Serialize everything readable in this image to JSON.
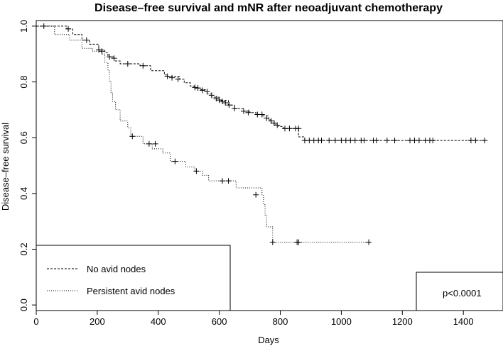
{
  "chart_data": {
    "type": "line",
    "subtype": "kaplan-meier",
    "title": "Disease–free survival and mNR after neoadjuvant chemotherapy",
    "xlabel": "Days",
    "ylabel": "Disease–free survival",
    "xlim": [
      0,
      1530
    ],
    "ylim": [
      -0.02,
      1.02
    ],
    "xticks": [
      0,
      200,
      400,
      600,
      800,
      1000,
      1200,
      1400
    ],
    "yticks": [
      0.0,
      0.2,
      0.4,
      0.6,
      0.8,
      1.0
    ],
    "xtick_labels": [
      "0",
      "200",
      "400",
      "600",
      "800",
      "1000",
      "1200",
      "1400"
    ],
    "ytick_labels": [
      "0.0",
      "0.2",
      "0.4",
      "0.6",
      "0.8",
      "1.0"
    ],
    "series": [
      {
        "name": "No avid nodes",
        "style": "dashed",
        "steps": [
          [
            0,
            1.0
          ],
          [
            100,
            0.99
          ],
          [
            120,
            0.97
          ],
          [
            150,
            0.95
          ],
          [
            175,
            0.935
          ],
          [
            205,
            0.915
          ],
          [
            225,
            0.905
          ],
          [
            235,
            0.89
          ],
          [
            255,
            0.875
          ],
          [
            275,
            0.865
          ],
          [
            340,
            0.858
          ],
          [
            375,
            0.84
          ],
          [
            420,
            0.825
          ],
          [
            430,
            0.82
          ],
          [
            470,
            0.81
          ],
          [
            485,
            0.797
          ],
          [
            505,
            0.785
          ],
          [
            518,
            0.778
          ],
          [
            540,
            0.772
          ],
          [
            560,
            0.757
          ],
          [
            575,
            0.745
          ],
          [
            600,
            0.733
          ],
          [
            630,
            0.717
          ],
          [
            650,
            0.704
          ],
          [
            680,
            0.695
          ],
          [
            700,
            0.69
          ],
          [
            720,
            0.683
          ],
          [
            742,
            0.678
          ],
          [
            760,
            0.664
          ],
          [
            770,
            0.652
          ],
          [
            785,
            0.645
          ],
          [
            795,
            0.64
          ],
          [
            810,
            0.633
          ],
          [
            860,
            0.603
          ],
          [
            880,
            0.59
          ],
          [
            1470,
            0.59
          ]
        ],
        "censor": [
          [
            25,
            1.0
          ],
          [
            105,
            0.99
          ],
          [
            165,
            0.95
          ],
          [
            205,
            0.915
          ],
          [
            215,
            0.91
          ],
          [
            240,
            0.89
          ],
          [
            255,
            0.885
          ],
          [
            300,
            0.865
          ],
          [
            350,
            0.858
          ],
          [
            430,
            0.82
          ],
          [
            445,
            0.815
          ],
          [
            465,
            0.81
          ],
          [
            520,
            0.78
          ],
          [
            530,
            0.778
          ],
          [
            545,
            0.77
          ],
          [
            560,
            0.765
          ],
          [
            575,
            0.752
          ],
          [
            590,
            0.74
          ],
          [
            600,
            0.735
          ],
          [
            610,
            0.73
          ],
          [
            620,
            0.725
          ],
          [
            632,
            0.717
          ],
          [
            650,
            0.705
          ],
          [
            680,
            0.695
          ],
          [
            695,
            0.69
          ],
          [
            725,
            0.683
          ],
          [
            740,
            0.683
          ],
          [
            755,
            0.67
          ],
          [
            770,
            0.66
          ],
          [
            780,
            0.652
          ],
          [
            790,
            0.645
          ],
          [
            815,
            0.633
          ],
          [
            830,
            0.633
          ],
          [
            850,
            0.633
          ],
          [
            860,
            0.633
          ],
          [
            880,
            0.59
          ],
          [
            895,
            0.59
          ],
          [
            910,
            0.59
          ],
          [
            925,
            0.59
          ],
          [
            935,
            0.59
          ],
          [
            960,
            0.59
          ],
          [
            980,
            0.59
          ],
          [
            1000,
            0.59
          ],
          [
            1015,
            0.59
          ],
          [
            1030,
            0.59
          ],
          [
            1045,
            0.59
          ],
          [
            1065,
            0.59
          ],
          [
            1075,
            0.59
          ],
          [
            1105,
            0.59
          ],
          [
            1115,
            0.59
          ],
          [
            1150,
            0.59
          ],
          [
            1175,
            0.59
          ],
          [
            1225,
            0.59
          ],
          [
            1240,
            0.59
          ],
          [
            1255,
            0.59
          ],
          [
            1275,
            0.59
          ],
          [
            1290,
            0.59
          ],
          [
            1300,
            0.59
          ],
          [
            1425,
            0.59
          ],
          [
            1440,
            0.59
          ],
          [
            1470,
            0.59
          ]
        ]
      },
      {
        "name": "Persistent avid nodes",
        "style": "dotted",
        "steps": [
          [
            0,
            1.0
          ],
          [
            60,
            0.97
          ],
          [
            110,
            0.95
          ],
          [
            150,
            0.92
          ],
          [
            185,
            0.91
          ],
          [
            215,
            0.9
          ],
          [
            225,
            0.87
          ],
          [
            235,
            0.84
          ],
          [
            240,
            0.8
          ],
          [
            245,
            0.76
          ],
          [
            250,
            0.73
          ],
          [
            260,
            0.7
          ],
          [
            275,
            0.66
          ],
          [
            300,
            0.635
          ],
          [
            310,
            0.605
          ],
          [
            350,
            0.578
          ],
          [
            380,
            0.56
          ],
          [
            415,
            0.545
          ],
          [
            440,
            0.515
          ],
          [
            490,
            0.495
          ],
          [
            520,
            0.48
          ],
          [
            545,
            0.465
          ],
          [
            565,
            0.445
          ],
          [
            620,
            0.445
          ],
          [
            655,
            0.42
          ],
          [
            740,
            0.395
          ],
          [
            745,
            0.36
          ],
          [
            750,
            0.32
          ],
          [
            755,
            0.28
          ],
          [
            775,
            0.225
          ],
          [
            1095,
            0.225
          ]
        ],
        "censor": [
          [
            315,
            0.605
          ],
          [
            370,
            0.578
          ],
          [
            390,
            0.578
          ],
          [
            455,
            0.515
          ],
          [
            525,
            0.48
          ],
          [
            610,
            0.445
          ],
          [
            630,
            0.445
          ],
          [
            720,
            0.395
          ],
          [
            775,
            0.225
          ],
          [
            855,
            0.225
          ],
          [
            860,
            0.225
          ],
          [
            1090,
            0.225
          ]
        ]
      }
    ],
    "legend": {
      "position": "bottom-left",
      "entries": [
        {
          "label": "No avid nodes",
          "style": "dashed"
        },
        {
          "label": "Persistent avid nodes",
          "style": "dotted"
        }
      ]
    },
    "annotation": "p<0.0001"
  }
}
